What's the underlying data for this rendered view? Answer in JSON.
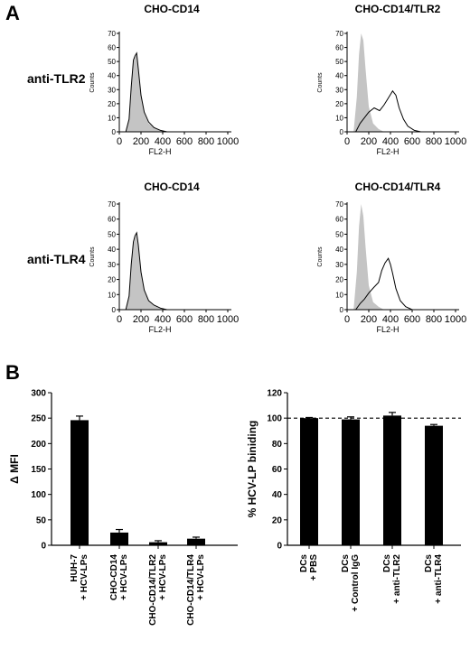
{
  "panel_labels": [
    "A",
    "B"
  ],
  "row_labels": [
    "anti-TLR2",
    "anti-TLR4"
  ],
  "chart_data": [
    {
      "type": "area",
      "title": "CHO-CD14",
      "xlabel": "FL2-H",
      "ylabel": "Counts",
      "xticks": [
        "0",
        "200",
        "400",
        "600",
        "800",
        "1000"
      ],
      "yticks": [
        "0",
        "10",
        "20",
        "30",
        "40",
        "50",
        "60",
        "70"
      ],
      "xlim": [
        0,
        1000
      ],
      "ylim": [
        0,
        70
      ],
      "series": [
        {
          "style": "shaded",
          "x": [
            60,
            90,
            110,
            130,
            145,
            160,
            175,
            200,
            230,
            270,
            320,
            380,
            440
          ],
          "y": [
            0,
            8,
            30,
            50,
            53,
            55,
            44,
            25,
            13,
            6,
            3,
            1,
            0
          ]
        },
        {
          "style": "outline",
          "x": [
            60,
            90,
            110,
            130,
            145,
            160,
            175,
            200,
            230,
            270,
            320,
            380,
            440
          ],
          "y": [
            0,
            9,
            32,
            51,
            54,
            56,
            45,
            26,
            14,
            7,
            3,
            1,
            0
          ]
        }
      ]
    },
    {
      "type": "area",
      "title": "CHO-CD14/TLR2",
      "xlabel": "FL2-H",
      "ylabel": "Counts",
      "xticks": [
        "0",
        "200",
        "400",
        "600",
        "800",
        "1000"
      ],
      "yticks": [
        "0",
        "10",
        "20",
        "30",
        "40",
        "50",
        "60",
        "70"
      ],
      "xlim": [
        0,
        1000
      ],
      "ylim": [
        0,
        70
      ],
      "series": [
        {
          "style": "shaded",
          "x": [
            60,
            90,
            110,
            130,
            150,
            170,
            200,
            240,
            290,
            340
          ],
          "y": [
            0,
            25,
            55,
            70,
            65,
            45,
            18,
            6,
            2,
            0
          ]
        },
        {
          "style": "outline",
          "x": [
            80,
            120,
            160,
            200,
            250,
            300,
            340,
            380,
            420,
            450,
            480,
            520,
            560,
            620,
            680
          ],
          "y": [
            0,
            6,
            10,
            14,
            17,
            15,
            19,
            24,
            29,
            26,
            17,
            9,
            4,
            1,
            0
          ]
        }
      ]
    },
    {
      "type": "area",
      "title": "CHO-CD14",
      "xlabel": "FL2-H",
      "ylabel": "Counts",
      "xticks": [
        "0",
        "200",
        "400",
        "600",
        "800",
        "1000"
      ],
      "yticks": [
        "0",
        "10",
        "20",
        "30",
        "40",
        "50",
        "60",
        "70"
      ],
      "xlim": [
        0,
        1000
      ],
      "ylim": [
        0,
        70
      ],
      "series": [
        {
          "style": "shaded",
          "x": [
            60,
            90,
            110,
            130,
            145,
            160,
            175,
            200,
            230,
            270,
            320,
            380,
            440
          ],
          "y": [
            0,
            8,
            28,
            44,
            48,
            50,
            42,
            24,
            12,
            6,
            3,
            1,
            0
          ]
        },
        {
          "style": "outline",
          "x": [
            60,
            90,
            110,
            130,
            145,
            160,
            175,
            200,
            230,
            270,
            320,
            380,
            440
          ],
          "y": [
            0,
            9,
            30,
            45,
            49,
            51,
            43,
            25,
            13,
            6,
            3,
            1,
            0
          ]
        }
      ]
    },
    {
      "type": "area",
      "title": "CHO-CD14/TLR4",
      "xlabel": "FL2-H",
      "ylabel": "Counts",
      "xticks": [
        "0",
        "200",
        "400",
        "600",
        "800",
        "1000"
      ],
      "yticks": [
        "0",
        "10",
        "20",
        "30",
        "40",
        "50",
        "60",
        "70"
      ],
      "xlim": [
        0,
        1000
      ],
      "ylim": [
        0,
        70
      ],
      "series": [
        {
          "style": "shaded",
          "x": [
            60,
            90,
            110,
            130,
            150,
            170,
            200,
            240,
            290,
            340
          ],
          "y": [
            0,
            25,
            55,
            70,
            62,
            42,
            16,
            5,
            2,
            0
          ]
        },
        {
          "style": "outline",
          "x": [
            80,
            120,
            160,
            200,
            250,
            290,
            320,
            350,
            380,
            400,
            420,
            450,
            490,
            540,
            600
          ],
          "y": [
            0,
            4,
            7,
            11,
            15,
            18,
            26,
            31,
            34,
            30,
            24,
            14,
            6,
            2,
            0
          ]
        }
      ]
    },
    {
      "type": "bar",
      "title": "",
      "xlabel": "",
      "ylabel": "Δ MFI",
      "yticks": [
        "0",
        "50",
        "100",
        "150",
        "200",
        "250",
        "300"
      ],
      "ylim": [
        0,
        300
      ],
      "categories": [
        "HUH-7\n+ HCV-LPs",
        "CHO-CD14\n+ HCV-LPs",
        "CHO-CD14/TLR2\n+ HCV-LPs",
        "CHO-CD14/TLR4\n+ HCV-LPs"
      ],
      "values": [
        246,
        25,
        6,
        13
      ],
      "errors": [
        8,
        6,
        3,
        3
      ]
    },
    {
      "type": "bar",
      "title": "",
      "xlabel": "",
      "ylabel": "% HCV-LP biniding",
      "yticks": [
        "0",
        "20",
        "40",
        "60",
        "80",
        "100",
        "120"
      ],
      "ylim": [
        0,
        120
      ],
      "reference_line": 100,
      "categories": [
        "DCs\n+ PBS",
        "DCs\n+ Control IgG",
        "DCs\n+ anti-TLR2",
        "DCs\n+ anti-TLR4"
      ],
      "values": [
        100,
        99,
        102,
        94
      ],
      "errors": [
        0.5,
        2,
        2.5,
        1
      ]
    }
  ]
}
